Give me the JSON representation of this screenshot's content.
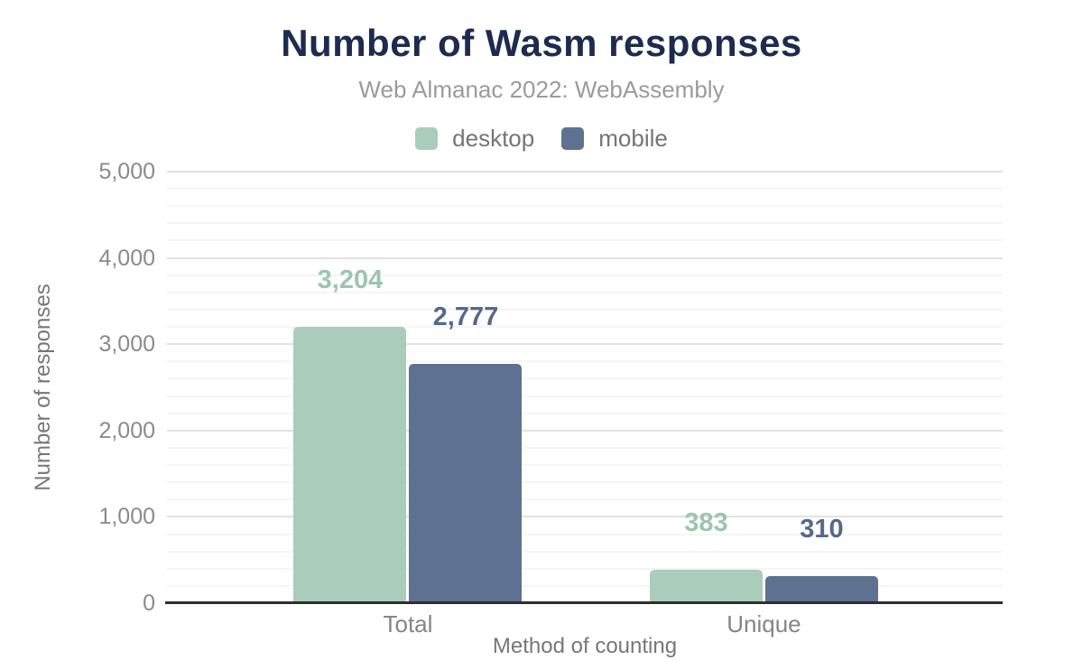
{
  "chart_data": {
    "type": "bar",
    "title": "Number of Wasm responses",
    "subtitle": "Web Almanac 2022: WebAssembly",
    "categories": [
      "Total",
      "Unique"
    ],
    "series": [
      {
        "name": "desktop",
        "color": "#a9cdba",
        "label_color": "#9cc5b0",
        "values": [
          3204,
          383
        ],
        "value_labels": [
          "3,204",
          "383"
        ]
      },
      {
        "name": "mobile",
        "color": "#5e7191",
        "label_color": "#55688d",
        "values": [
          2777,
          310
        ],
        "value_labels": [
          "2,777",
          "310"
        ]
      }
    ],
    "xlabel": "Method of counting",
    "ylabel": "Number of responses",
    "ylim": [
      0,
      5000
    ],
    "y_ticks": [
      {
        "value": 0,
        "label": "0"
      },
      {
        "value": 1000,
        "label": "1,000"
      },
      {
        "value": 2000,
        "label": "2,000"
      },
      {
        "value": 3000,
        "label": "3,000"
      },
      {
        "value": 4000,
        "label": "4,000"
      },
      {
        "value": 5000,
        "label": "5,000"
      }
    ],
    "y_minor_step": 200,
    "grid": "horizontal, major + minor lines",
    "legend_position": "top-center",
    "axis_line_color": "#2e2e2e"
  }
}
